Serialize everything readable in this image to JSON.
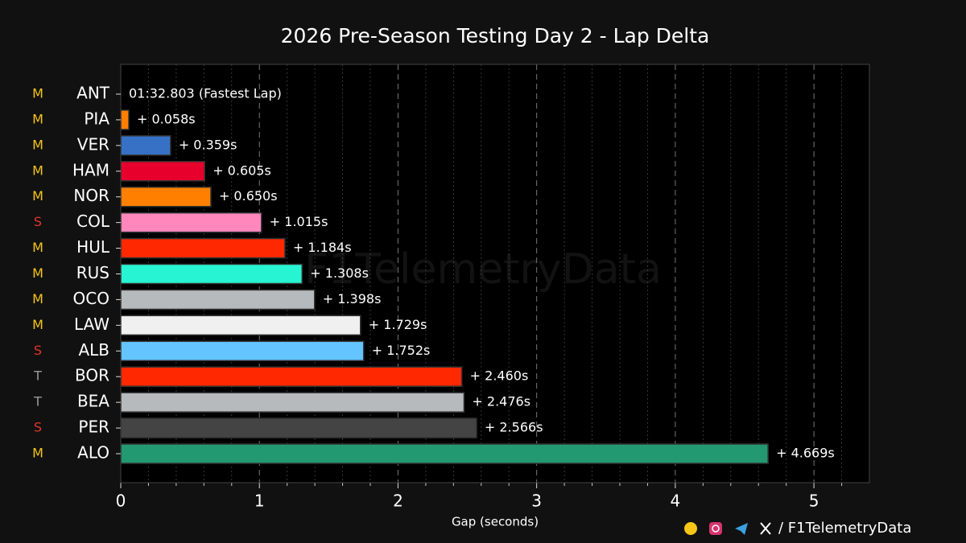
{
  "chart_data": {
    "type": "barh",
    "title": "2026 Pre-Season Testing Day 2 - Lap Delta",
    "xlabel": "Gap (seconds)",
    "categories": [
      "ANT",
      "PIA",
      "VER",
      "HAM",
      "NOR",
      "COL",
      "HUL",
      "RUS",
      "OCO",
      "LAW",
      "ALB",
      "BOR",
      "BEA",
      "PER",
      "ALO"
    ],
    "compounds": [
      "M",
      "M",
      "M",
      "M",
      "M",
      "S",
      "M",
      "M",
      "M",
      "M",
      "S",
      "T",
      "T",
      "S",
      "M"
    ],
    "compound_colors": {
      "M": "#f5c518",
      "S": "#e0362b",
      "T": "#9a9a9a"
    },
    "values": [
      0,
      0.058,
      0.359,
      0.605,
      0.65,
      1.015,
      1.184,
      1.308,
      1.398,
      1.729,
      1.752,
      2.46,
      2.476,
      2.566,
      4.669
    ],
    "value_labels": [
      "01:32.803 (Fastest Lap)",
      "+ 0.058s",
      "+ 0.359s",
      "+ 0.605s",
      "+ 0.650s",
      "+ 1.015s",
      "+ 1.184s",
      "+ 1.308s",
      "+ 1.398s",
      "+ 1.729s",
      "+ 1.752s",
      "+ 2.460s",
      "+ 2.476s",
      "+ 2.566s",
      "+ 4.669s"
    ],
    "colors": [
      "#27f4d2",
      "#ff8000",
      "#3671c6",
      "#e8002d",
      "#ff8000",
      "#ff87bc",
      "#ff2800",
      "#27f4d2",
      "#b6babd",
      "#f0f0f0",
      "#64c4ff",
      "#ff2800",
      "#b6babd",
      "#444444",
      "#229971"
    ],
    "xlim": [
      0,
      5.4
    ],
    "xticks": [
      0,
      1,
      2,
      3,
      4,
      5
    ],
    "xminorticks": [
      0.2,
      0.4,
      0.6,
      0.8,
      1.2,
      1.4,
      1.6,
      1.8,
      2.2,
      2.4,
      2.6,
      2.8,
      3.2,
      3.4,
      3.6,
      3.8,
      4.2,
      4.4,
      4.6,
      4.8,
      5.2
    ],
    "grid": true,
    "watermark": "F1TelemetryData",
    "footer": "/ F1TelemetryData"
  }
}
